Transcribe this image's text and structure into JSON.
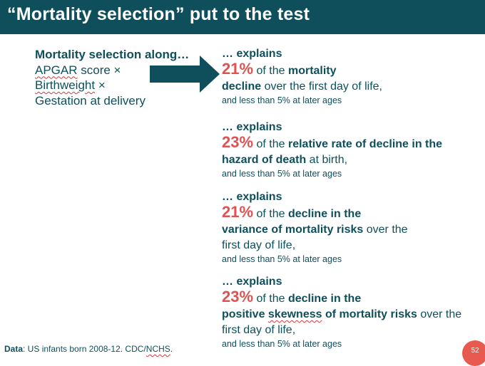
{
  "slide": {
    "title": "“Mortality selection” put to the test",
    "page_number": "52"
  },
  "left_panel": {
    "heading": "Mortality selection along…",
    "items": [
      {
        "text": "APGAR",
        "suffix": " score ×"
      },
      {
        "text": "Birthweight",
        "suffix": " ×"
      },
      {
        "text": "Gestation at delivery",
        "suffix": ""
      }
    ]
  },
  "blocks": [
    {
      "explains": "… explains",
      "percent": "21%",
      "line1_pre": " of the ",
      "line1_bold": "mortality",
      "line2_bold": "decline",
      "line2_rest": " over the first day of life,",
      "note": "and less than 5% at later ages"
    },
    {
      "explains": "… explains",
      "percent": "23%",
      "line1_pre": " of the ",
      "line1_bold": "relative rate of decline in the",
      "line2_bold": "hazard of death",
      "line2_rest": " at birth,",
      "note": "and less than 5% at later ages"
    },
    {
      "explains": "… explains",
      "percent": "21%",
      "line1_pre": " of the ",
      "line1_bold": "decline in the",
      "line2_bold": "variance of mortality risks",
      "line2_rest": " over the",
      "line3": "first day of life,",
      "note": "and less than 5% at later ages"
    },
    {
      "explains": "… explains",
      "percent": "23%",
      "line1_pre": " of the ",
      "line1_bold": "decline in the",
      "line2_bold_a": "positive ",
      "line2_bold_b": "skewness",
      "line2_bold_c": " of mortality risks",
      "line2_rest": " over the",
      "line3": "first day of life,",
      "note": "and less than 5% at later ages"
    }
  ],
  "footer": {
    "label": "Data",
    "text": ": US infants born 2008-12. CDC/",
    "source": "NCHS",
    "end": "."
  },
  "colors": {
    "primary": "#0f4f5c",
    "accent": "#e05252",
    "badge": "#e85a4f"
  }
}
